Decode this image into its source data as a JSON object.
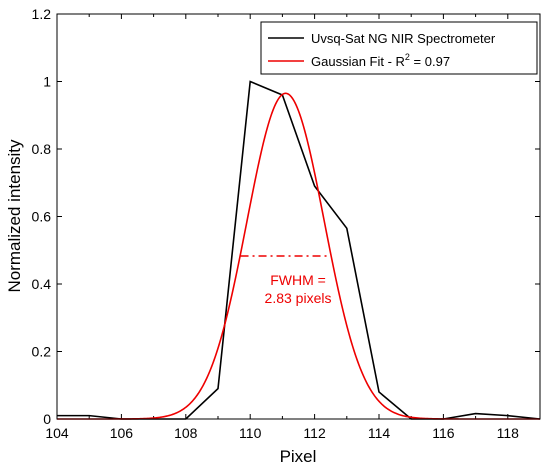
{
  "chart_data": {
    "type": "line",
    "xlabel": "Pixel",
    "ylabel": "Normalized intensity",
    "xlim": [
      104,
      119
    ],
    "ylim": [
      0,
      1.2
    ],
    "x_ticks": [
      "104",
      "106",
      "108",
      "110",
      "112",
      "114",
      "116",
      "118"
    ],
    "y_ticks": [
      "0",
      "0.2",
      "0.4",
      "0.6",
      "0.8",
      "1",
      "1.2"
    ],
    "legend_position": "top-right",
    "series": [
      {
        "name": "Uvsq-Sat NG NIR Spectrometer",
        "color": "#000000",
        "x": [
          104,
          105,
          106,
          107,
          108,
          109,
          110,
          111,
          112,
          113,
          114,
          115,
          116,
          117,
          118,
          119
        ],
        "y": [
          0.01,
          0.01,
          0.0,
          0.0,
          0.0,
          0.09,
          1.0,
          0.96,
          0.69,
          0.565,
          0.08,
          0.0,
          0.0,
          0.016,
          0.01,
          0.0
        ]
      },
      {
        "name": "Gaussian Fit - R",
        "name_superscript": "2",
        "name_suffix": " = 0.97",
        "color": "#ee0000",
        "function": "gaussian",
        "amplitude": 0.965,
        "center": 111.1,
        "fwhm": 2.83
      }
    ],
    "annotation": {
      "line1": "FWHM =",
      "line2": "2.83 pixels",
      "color": "#ee0000",
      "fwhm_y": 0.483,
      "fwhm_x_range": [
        109.7,
        112.5
      ]
    }
  }
}
